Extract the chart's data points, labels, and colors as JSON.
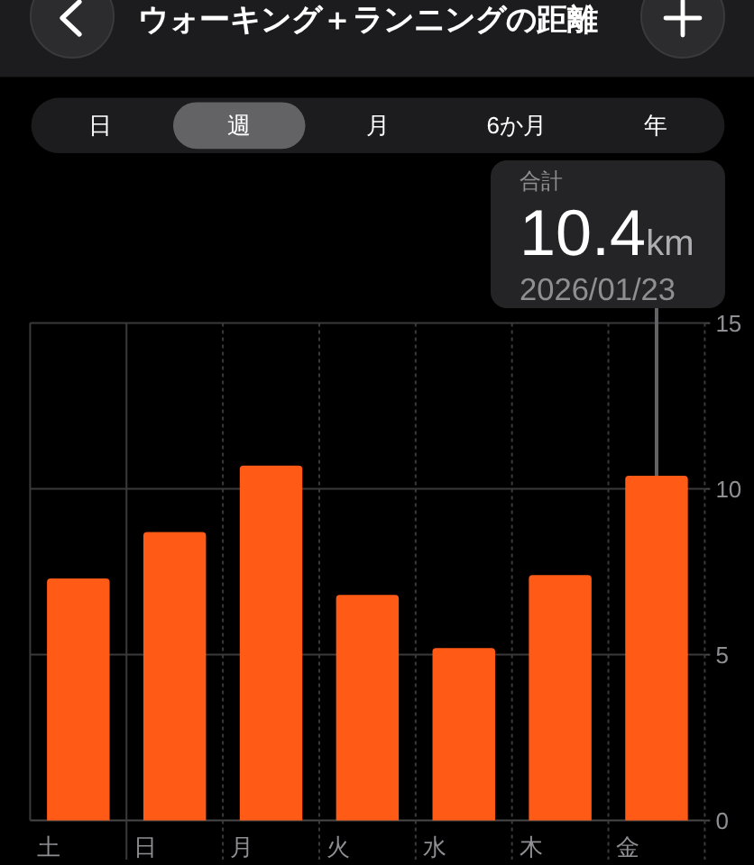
{
  "chart_data": {
    "type": "bar",
    "title": "ウォーキング＋ランニングの距離",
    "categories": [
      "土",
      "日",
      "月",
      "火",
      "水",
      "木",
      "金"
    ],
    "values": [
      7.3,
      8.7,
      10.7,
      6.8,
      5.2,
      7.4,
      10.4
    ],
    "color": "#ff5a16",
    "ylim": [
      0,
      15
    ],
    "yticks": [
      0,
      5,
      10,
      15
    ],
    "grid": true,
    "annotations": [
      "日",
      "週",
      "月",
      "6か月",
      "年",
      {
        "text": "合計\n10.4km\n2026/01/23",
        "x": "金",
        "y": 10.4
      }
    ]
  }
}
